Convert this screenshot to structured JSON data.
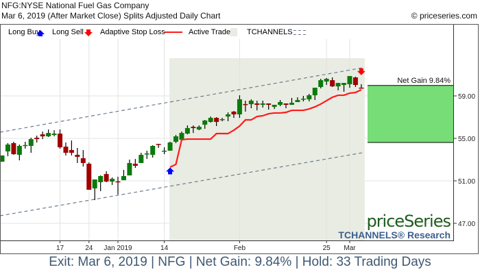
{
  "header": {
    "title": "NFG:NYSE National Fuel Gas Company",
    "subtitle": "Mar 6, 2019 (After Market Close)  Splits Adjusted Daily Chart",
    "copyright": "© priceseries.com"
  },
  "legend": {
    "long_buy": "Long Buy",
    "long_sell": "Long Sell",
    "stop_loss": "Adaptive Stop Loss",
    "active_trade": "Active Trade",
    "tchannels": "TCHANNELS"
  },
  "watermark": {
    "brand": "priceSeries",
    "sub": "TCHANNELS® Research"
  },
  "footer": "Exit: Mar 6, 2019 | NFG | Net Gain: 9.84% | Hold: 33 Trading Days",
  "colors": {
    "up": "#0a7a0a",
    "down": "#a00000",
    "stop": "#ff1a1a",
    "buy": "#0000ff",
    "sell": "#ff0000",
    "active": "#e9ece2",
    "gain": "#77dd77",
    "channel": "#6b7b8c"
  },
  "chart_data": {
    "type": "candlestick",
    "ylim": [
      45.4,
      65.3
    ],
    "y_ticks": [
      "47.00",
      "51.00",
      "55.00",
      "59.00"
    ],
    "x_ticks": [
      {
        "label": "17",
        "index": 10
      },
      {
        "label": "24",
        "index": 15
      },
      {
        "label": "Jan 2019",
        "index": 20
      },
      {
        "label": "14",
        "index": 28
      },
      {
        "label": "Feb",
        "index": 41
      },
      {
        "label": "25",
        "index": 56
      },
      {
        "label": "Mar",
        "index": 60
      }
    ],
    "ohlc": [
      [
        52.8,
        53.39,
        52.8,
        53.39
      ],
      [
        53.77,
        54.55,
        53.32,
        54.42
      ],
      [
        54.55,
        54.68,
        53.45,
        53.51
      ],
      [
        53.45,
        54.42,
        52.93,
        54.29
      ],
      [
        54.35,
        54.68,
        54.03,
        54.37
      ],
      [
        54.29,
        55.06,
        53.64,
        54.93
      ],
      [
        55.06,
        55.26,
        54.61,
        54.93
      ],
      [
        55.38,
        55.64,
        54.93,
        55.19
      ],
      [
        55.19,
        55.84,
        55.13,
        55.51
      ],
      [
        55.32,
        55.77,
        55.19,
        55.45
      ],
      [
        55.45,
        55.84,
        54.03,
        54.16
      ],
      [
        54.22,
        54.61,
        53.39,
        53.64
      ],
      [
        53.9,
        54.8,
        53.39,
        53.64
      ],
      [
        53.45,
        54.1,
        52.68,
        53.26
      ],
      [
        53.13,
        53.9,
        52.35,
        52.68
      ],
      [
        52.61,
        52.74,
        50.16,
        50.16
      ],
      [
        50.29,
        51.13,
        49.19,
        51.13
      ],
      [
        50.87,
        51.51,
        50.03,
        51.45
      ],
      [
        51.64,
        51.9,
        50.87,
        50.93
      ],
      [
        50.93,
        51.32,
        50.61,
        51.19
      ],
      [
        50.95,
        51.39,
        49.71,
        50.93
      ],
      [
        51.06,
        52.03,
        51.06,
        51.45
      ],
      [
        51.51,
        53.0,
        51.51,
        52.68
      ],
      [
        52.61,
        53.06,
        52.22,
        52.42
      ],
      [
        52.68,
        53.64,
        52.68,
        53.45
      ],
      [
        53.55,
        53.84,
        53.06,
        53.58
      ],
      [
        53.45,
        54.35,
        53.19,
        54.29
      ],
      [
        54.48,
        54.48,
        54.1,
        54.45
      ],
      [
        53.82,
        54.16,
        53.51,
        53.84
      ],
      [
        53.84,
        54.68,
        53.84,
        54.61
      ],
      [
        54.68,
        55.32,
        54.55,
        55.19
      ],
      [
        54.87,
        55.64,
        54.74,
        55.51
      ],
      [
        55.45,
        56.22,
        55.38,
        55.97
      ],
      [
        56.09,
        56.22,
        55.51,
        55.97
      ],
      [
        55.84,
        56.22,
        55.77,
        56.09
      ],
      [
        56.29,
        56.74,
        55.9,
        56.68
      ],
      [
        56.55,
        57.06,
        56.48,
        56.93
      ],
      [
        56.93,
        57.0,
        56.16,
        56.55
      ],
      [
        56.8,
        56.93,
        56.61,
        56.81
      ],
      [
        57.06,
        57.45,
        56.61,
        57.26
      ],
      [
        57.52,
        57.58,
        56.93,
        57.26
      ],
      [
        57.26,
        59.06,
        56.93,
        58.68
      ],
      [
        58.23,
        58.55,
        57.52,
        58.22
      ],
      [
        58.22,
        58.68,
        57.84,
        58.55
      ],
      [
        58.29,
        58.55,
        57.64,
        58.16
      ],
      [
        58.16,
        58.55,
        57.9,
        58.29
      ],
      [
        58.29,
        58.29,
        57.71,
        58.16
      ],
      [
        57.97,
        58.16,
        57.77,
        58.16
      ],
      [
        58.16,
        58.61,
        58.03,
        58.42
      ],
      [
        58.29,
        58.29,
        57.84,
        58.16
      ],
      [
        58.16,
        58.81,
        58.16,
        58.35
      ],
      [
        58.42,
        58.87,
        58.42,
        58.61
      ],
      [
        58.73,
        59.0,
        58.48,
        58.74
      ],
      [
        58.68,
        59.19,
        58.48,
        59.06
      ],
      [
        59.06,
        59.77,
        58.61,
        59.77
      ],
      [
        59.84,
        60.61,
        59.71,
        60.48
      ],
      [
        60.35,
        60.68,
        60.03,
        60.61
      ],
      [
        60.48,
        60.74,
        59.84,
        59.9
      ],
      [
        59.9,
        60.22,
        59.52,
        60.22
      ],
      [
        60.03,
        60.22,
        59.39,
        60.22
      ],
      [
        60.1,
        60.87,
        59.77,
        60.87
      ],
      [
        60.74,
        60.81,
        59.84,
        60.03
      ],
      [
        59.78,
        60.1,
        59.77,
        59.77
      ]
    ],
    "stop_loss": {
      "start_index": 29,
      "values": [
        52.29,
        52.55,
        54.87,
        54.93,
        54.93,
        54.93,
        54.93,
        54.93,
        55.45,
        55.45,
        55.45,
        55.77,
        56.16,
        56.74,
        56.74,
        57.06,
        57.13,
        57.32,
        57.39,
        57.39,
        57.45,
        57.64,
        57.64,
        57.64,
        57.77,
        57.97,
        58.23,
        58.55,
        58.87,
        59.06,
        59.06,
        59.26,
        59.32,
        59.58
      ]
    },
    "active_trade": {
      "start_index": 29,
      "end_index": 62
    },
    "buy_signal": {
      "index": 29,
      "price": 52.0
    },
    "sell_signal": {
      "index": 62,
      "price": 61.4
    },
    "channels": {
      "upper": {
        "start": [
          0,
          55.58
        ],
        "end": [
          62,
          61.64
        ]
      },
      "lower": {
        "start": [
          0,
          47.71
        ],
        "end": [
          62,
          53.64
        ]
      }
    },
    "net_gain": {
      "label": "Net Gain 9.84%",
      "entry": 54.61,
      "exit": 59.98
    }
  }
}
